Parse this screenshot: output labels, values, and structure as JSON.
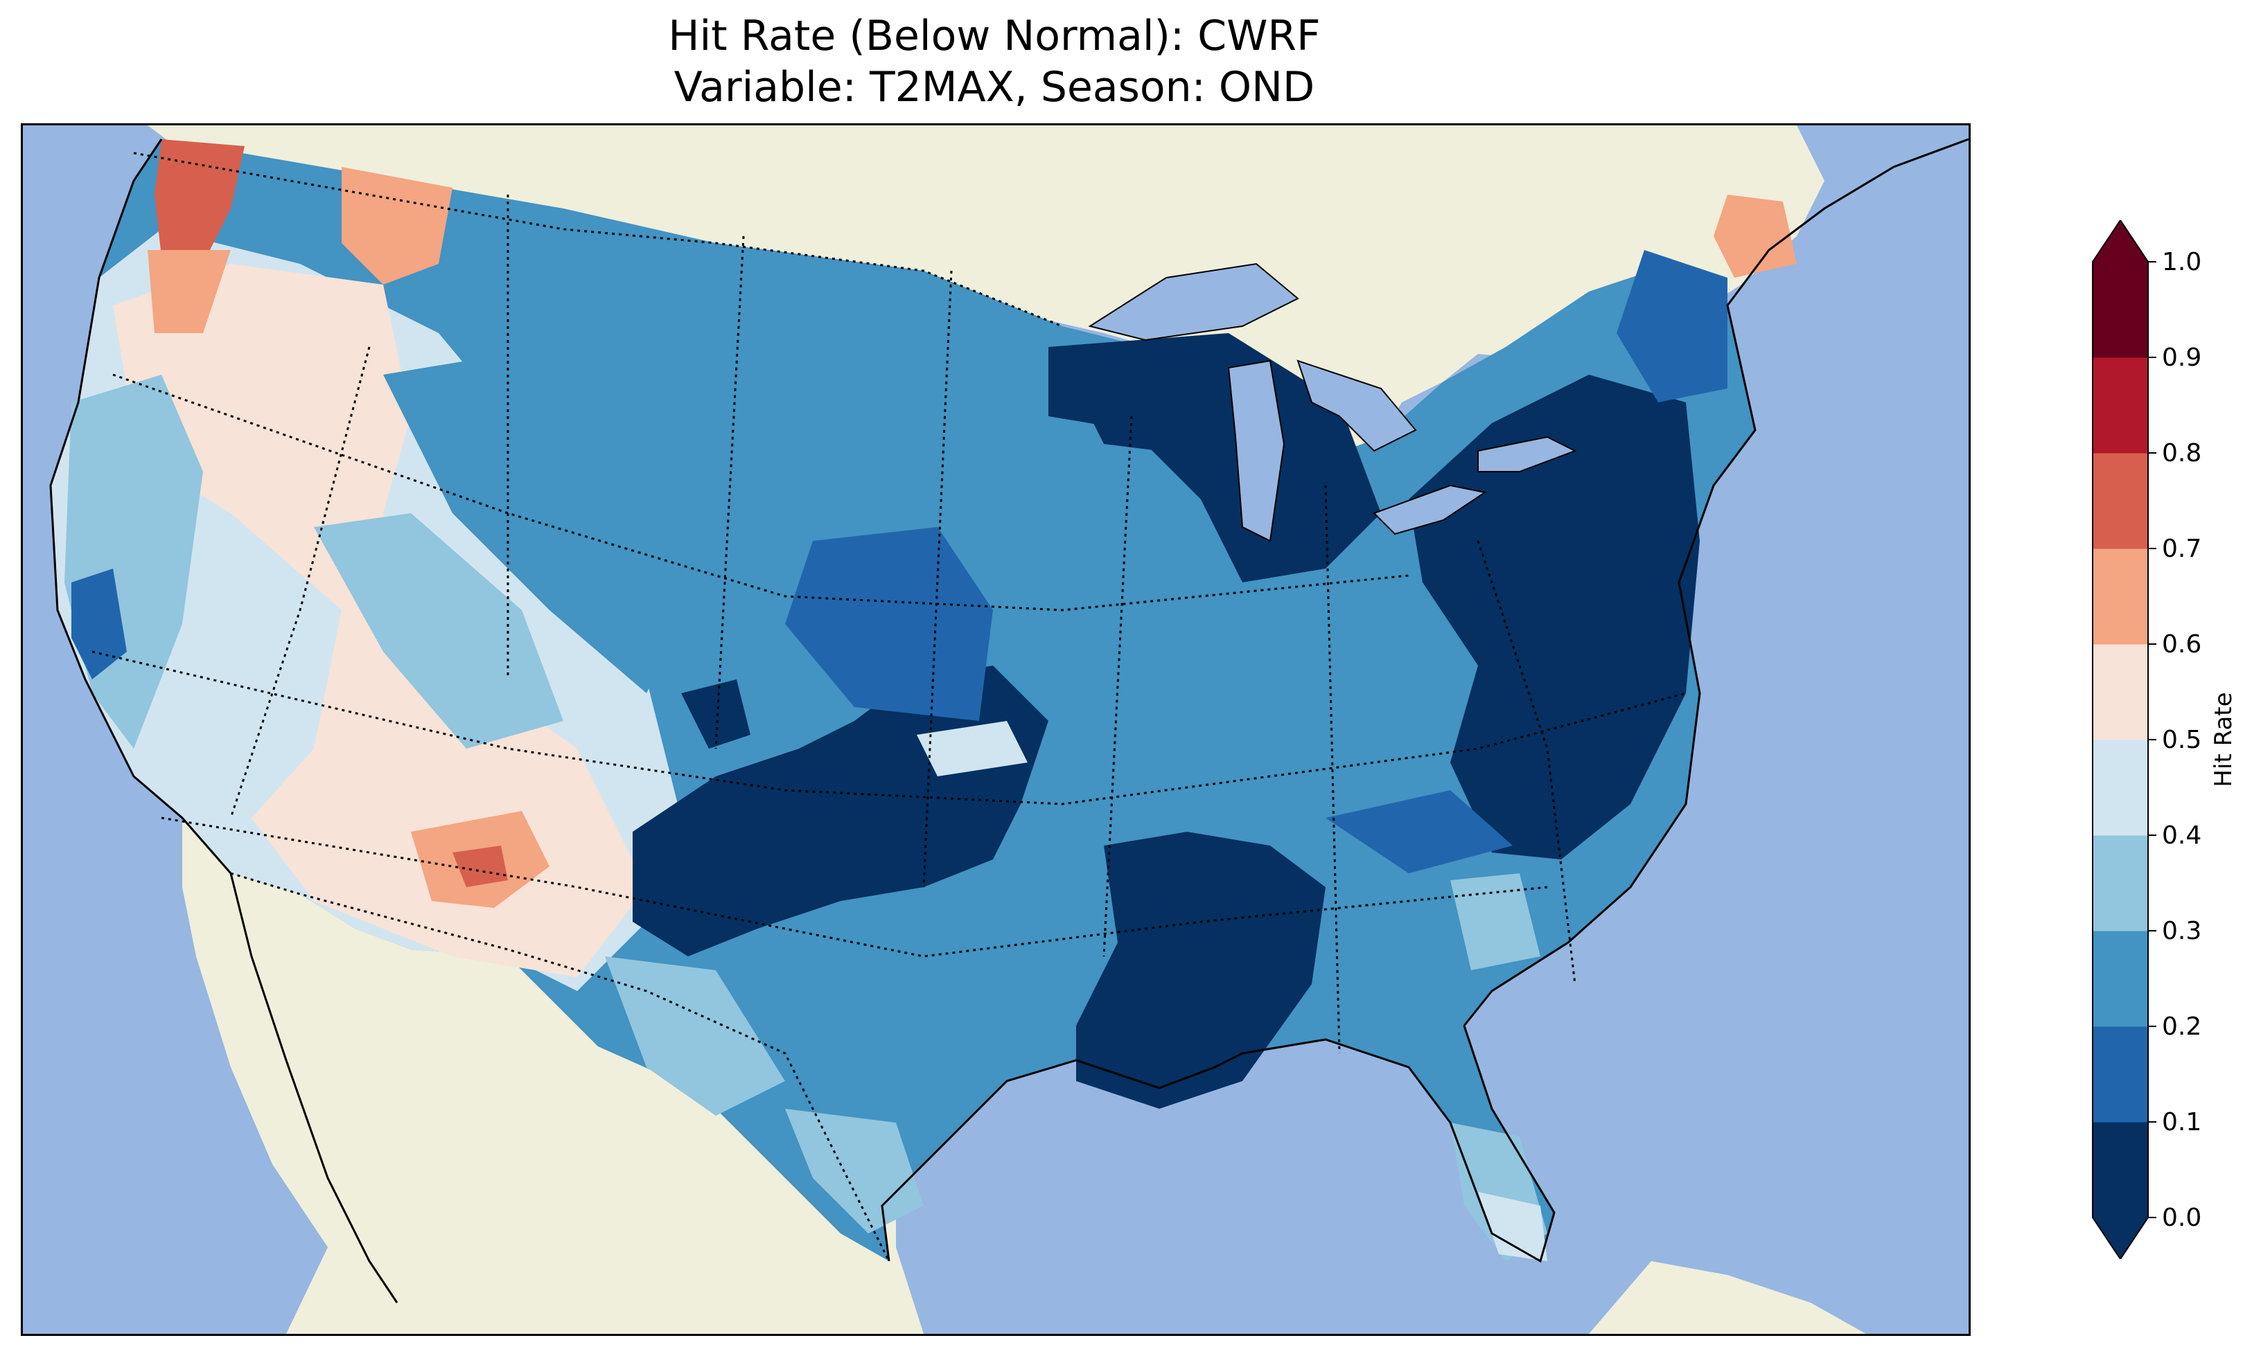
{
  "title": {
    "line1": "Hit Rate (Below Normal): CWRF",
    "line2": "Variable: T2MAX, Season: OND"
  },
  "map": {
    "extent": "Contiguous United States with parts of Canada, Mexico and Caribbean",
    "ocean_color": "#97b6e1",
    "land_color": "#efefdb",
    "lakes_color": "#97b6e1",
    "field": "Hit Rate",
    "regions": [
      {
        "name": "northwest-coast",
        "level": 0.75
      },
      {
        "name": "northern-rockies",
        "level": 0.55
      },
      {
        "name": "great-basin",
        "level": 0.45
      },
      {
        "name": "southwest",
        "level": 0.55
      },
      {
        "name": "arizona-hotspot",
        "level": 0.75
      },
      {
        "name": "northern-plains",
        "level": 0.25
      },
      {
        "name": "central-plains",
        "level": 0.25
      },
      {
        "name": "southern-plains",
        "level": 0.05
      },
      {
        "name": "midwest",
        "level": 0.25
      },
      {
        "name": "great-lakes-michigan",
        "level": 0.05
      },
      {
        "name": "mississippi-valley",
        "level": 0.05
      },
      {
        "name": "northeast",
        "level": 0.05
      },
      {
        "name": "mid-atlantic",
        "level": 0.05
      },
      {
        "name": "southeast",
        "level": 0.25
      },
      {
        "name": "florida",
        "level": 0.35
      },
      {
        "name": "texas-gulf",
        "level": 0.25
      },
      {
        "name": "maine",
        "level": 0.65
      }
    ]
  },
  "colorbar": {
    "label": "Hit Rate",
    "ticks": [
      "0.0",
      "0.1",
      "0.2",
      "0.3",
      "0.4",
      "0.5",
      "0.6",
      "0.7",
      "0.8",
      "0.9",
      "1.0"
    ],
    "colors": [
      "#053061",
      "#2166ac",
      "#4393c3",
      "#92c5de",
      "#d1e5f0",
      "#f7e3d7",
      "#f4a582",
      "#d6604d",
      "#b2182b",
      "#67001f"
    ],
    "extend_under_color": "#053061",
    "extend_over_color": "#67001f"
  }
}
